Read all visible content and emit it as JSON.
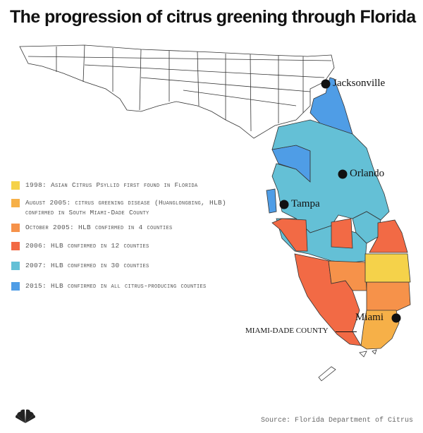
{
  "title": "The progression of citrus greening through Florida",
  "colors": {
    "y1998": "#f5d24a",
    "y2005aug": "#f6b048",
    "y2005oct": "#f6924a",
    "y2006": "#f26a45",
    "y2007": "#64c0d6",
    "y2015": "#4f9de6",
    "uncolored": "#ffffff",
    "border": "#333333"
  },
  "legend": [
    {
      "color": "#f5d24a",
      "text": "1998: Asian Citrus Psyllid first found in Florida"
    },
    {
      "color": "#f6b048",
      "text": "August 2005: citrus greening disease (Huanglongbing, HLB) confirmed in South Miami-Dade County"
    },
    {
      "color": "#f6924a",
      "text": "October 2005: HLB confirmed in 4 counties"
    },
    {
      "color": "#f26a45",
      "text": "2006: HLB confirmed in 12 counties"
    },
    {
      "color": "#64c0d6",
      "text": "2007: HLB confirmed in 30 counties"
    },
    {
      "color": "#4f9de6",
      "text": "2015: HLB confirmed in all citrus-producing counties"
    }
  ],
  "cities": {
    "jacksonville": "Jacksonville",
    "orlando": "Orlando",
    "tampa": "Tampa",
    "miami": "Miami"
  },
  "county_label": "MIAMI-DADE COUNTY",
  "source": "Source: Florida Department of Citrus",
  "logo_icon": "nbc-peacock-icon"
}
